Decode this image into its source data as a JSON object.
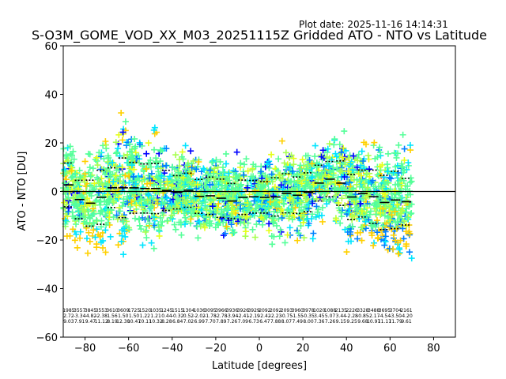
{
  "chart_data": {
    "type": "scatter",
    "title": "S-O3M_GOME_VOD_XX_M03_20251115Z Gridded ATO - NTO vs Latitude",
    "plot_date": "Plot date: 2025-11-16 14:14:31",
    "xlabel": "Latitude [degrees]",
    "ylabel": "ATO - NTO [DU]",
    "xlim": [
      -90,
      90
    ],
    "ylim": [
      -60,
      60
    ],
    "xticks": [
      -80,
      -60,
      -40,
      -20,
      0,
      20,
      40,
      60,
      80
    ],
    "yticks": [
      -60,
      -40,
      -20,
      0,
      20,
      40,
      60
    ],
    "xtick_labels": [
      "−80",
      "−60",
      "−40",
      "−20",
      "0",
      "20",
      "40",
      "60",
      "80"
    ],
    "ytick_labels": [
      "−60",
      "−40",
      "−20",
      "0",
      "20",
      "40",
      "60"
    ],
    "zero_line": 0,
    "grid": false,
    "marker": "+",
    "point_colors": [
      "#0000ff",
      "#0080ff",
      "#00e5ff",
      "#55ff99",
      "#a8ff50",
      "#e5ff1a",
      "#ffd000",
      "#ff9900"
    ],
    "bins": {
      "lat": [
        -87.5,
        -82.5,
        -77.5,
        -72.5,
        -67.5,
        -62.5,
        -57.5,
        -52.5,
        -47.5,
        -42.5,
        -37.5,
        -32.5,
        -27.5,
        -22.5,
        -17.5,
        -12.5,
        -7.5,
        -2.5,
        2.5,
        7.5,
        12.5,
        17.5,
        22.5,
        27.5,
        32.5,
        37.5,
        42.5,
        47.5,
        52.5,
        57.5,
        62.5,
        67.5
      ],
      "mean": [
        2.72,
        -3.34,
        -4.82,
        -2.38,
        1.56,
        1.5,
        1.5,
        1.22,
        1.21,
        0.44,
        -0.32,
        0.52,
        -2.02,
        -1.78,
        -2.78,
        -3.94,
        -2.41,
        -2.19,
        -2.42,
        -2.23,
        -0.75,
        -1.55,
        -0.35,
        3.45,
        5.07,
        3.44,
        -2.28,
        -0.85,
        -2.17,
        -4.54,
        -3.5,
        -4.2
      ],
      "std": [
        9.03,
        7.91,
        9.47,
        11.12,
        8.19,
        12.3,
        10.47,
        10.11,
        10.32,
        8.28,
        6.84,
        7.02,
        6.99,
        7.7,
        7.89,
        7.26,
        7.09,
        6.73,
        6.47,
        7.88,
        8.07,
        7.49,
        8.0,
        7.36,
        7.26,
        9.15,
        9.25,
        9.68,
        10.97,
        11.17,
        11.79,
        9.61
      ],
      "count": [
        1985,
        3557,
        3845,
        3553,
        3610,
        3609,
        1725,
        1520,
        1035,
        1245,
        1515,
        1304,
        1036,
        3095,
        3966,
        3936,
        3926,
        3929,
        2092,
        2092,
        2093,
        3960,
        3978,
        1020,
        1088,
        2135,
        2226,
        3328,
        3488,
        3695,
        3704,
        2161
      ]
    }
  }
}
